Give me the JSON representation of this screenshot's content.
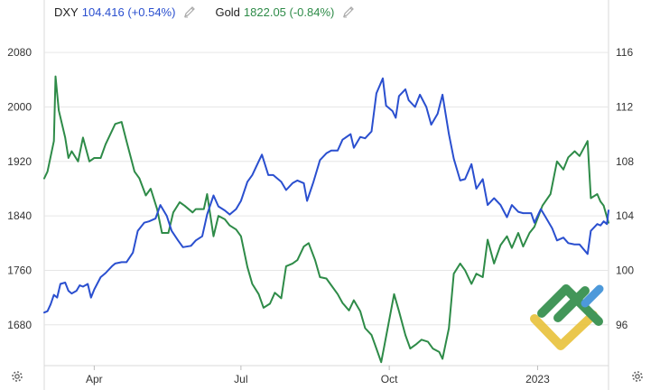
{
  "legend": {
    "dxy": {
      "name": "DXY",
      "value": "104.416 (+0.54%)",
      "color": "#2A4FCF",
      "edit_icon": "pencil-icon"
    },
    "gold": {
      "name": "Gold",
      "value": "1822.05 (-0.84%)",
      "color": "#2E8B48",
      "edit_icon": "pencil-icon"
    }
  },
  "settings_icons": [
    "gear-icon",
    "gear-icon"
  ],
  "watermark_logo": "brand-logo",
  "chart_data": {
    "type": "line",
    "x_range": [
      "2022-03-01",
      "2023-02-14"
    ],
    "x_ticks": [
      {
        "label": "Apr",
        "date": "2022-04-01"
      },
      {
        "label": "Jul",
        "date": "2022-07-01"
      },
      {
        "label": "Oct",
        "date": "2022-10-01"
      },
      {
        "label": "2023",
        "date": "2023-01-01"
      }
    ],
    "y_left": {
      "ticks": [
        1680,
        1760,
        1840,
        1920,
        2000,
        2080
      ],
      "range": [
        1620,
        2120
      ]
    },
    "y_right": {
      "ticks": [
        96,
        100,
        104,
        108,
        112,
        116
      ],
      "range": [
        93,
        118
      ]
    },
    "grid": true,
    "series": [
      {
        "name": "Gold",
        "axis": "left",
        "color": "#2E8B48",
        "points": [
          [
            "2022-03-01",
            1895
          ],
          [
            "2022-03-03",
            1905
          ],
          [
            "2022-03-07",
            1950
          ],
          [
            "2022-03-08",
            2045
          ],
          [
            "2022-03-10",
            1995
          ],
          [
            "2022-03-14",
            1955
          ],
          [
            "2022-03-16",
            1925
          ],
          [
            "2022-03-18",
            1935
          ],
          [
            "2022-03-22",
            1920
          ],
          [
            "2022-03-25",
            1955
          ],
          [
            "2022-03-29",
            1920
          ],
          [
            "2022-04-01",
            1925
          ],
          [
            "2022-04-05",
            1925
          ],
          [
            "2022-04-08",
            1945
          ],
          [
            "2022-04-12",
            1965
          ],
          [
            "2022-04-14",
            1975
          ],
          [
            "2022-04-18",
            1978
          ],
          [
            "2022-04-21",
            1950
          ],
          [
            "2022-04-26",
            1905
          ],
          [
            "2022-04-29",
            1895
          ],
          [
            "2022-05-03",
            1870
          ],
          [
            "2022-05-06",
            1880
          ],
          [
            "2022-05-10",
            1850
          ],
          [
            "2022-05-13",
            1815
          ],
          [
            "2022-05-17",
            1815
          ],
          [
            "2022-05-20",
            1845
          ],
          [
            "2022-05-24",
            1860
          ],
          [
            "2022-05-27",
            1855
          ],
          [
            "2022-06-01",
            1845
          ],
          [
            "2022-06-03",
            1850
          ],
          [
            "2022-06-08",
            1850
          ],
          [
            "2022-06-10",
            1872
          ],
          [
            "2022-06-14",
            1810
          ],
          [
            "2022-06-17",
            1840
          ],
          [
            "2022-06-21",
            1835
          ],
          [
            "2022-06-24",
            1826
          ],
          [
            "2022-06-28",
            1820
          ],
          [
            "2022-07-01",
            1810
          ],
          [
            "2022-07-05",
            1765
          ],
          [
            "2022-07-08",
            1740
          ],
          [
            "2022-07-12",
            1725
          ],
          [
            "2022-07-15",
            1705
          ],
          [
            "2022-07-19",
            1711
          ],
          [
            "2022-07-22",
            1727
          ],
          [
            "2022-07-26",
            1719
          ],
          [
            "2022-07-29",
            1766
          ],
          [
            "2022-08-02",
            1770
          ],
          [
            "2022-08-05",
            1775
          ],
          [
            "2022-08-09",
            1795
          ],
          [
            "2022-08-12",
            1800
          ],
          [
            "2022-08-16",
            1775
          ],
          [
            "2022-08-19",
            1750
          ],
          [
            "2022-08-23",
            1748
          ],
          [
            "2022-08-26",
            1738
          ],
          [
            "2022-08-30",
            1725
          ],
          [
            "2022-09-02",
            1712
          ],
          [
            "2022-09-06",
            1701
          ],
          [
            "2022-09-09",
            1716
          ],
          [
            "2022-09-13",
            1700
          ],
          [
            "2022-09-16",
            1675
          ],
          [
            "2022-09-20",
            1665
          ],
          [
            "2022-09-23",
            1645
          ],
          [
            "2022-09-26",
            1625
          ],
          [
            "2022-09-28",
            1650
          ],
          [
            "2022-10-04",
            1725
          ],
          [
            "2022-10-07",
            1700
          ],
          [
            "2022-10-11",
            1665
          ],
          [
            "2022-10-14",
            1645
          ],
          [
            "2022-10-18",
            1652
          ],
          [
            "2022-10-21",
            1658
          ],
          [
            "2022-10-25",
            1655
          ],
          [
            "2022-10-28",
            1645
          ],
          [
            "2022-11-01",
            1640
          ],
          [
            "2022-11-03",
            1630
          ],
          [
            "2022-11-07",
            1675
          ],
          [
            "2022-11-10",
            1755
          ],
          [
            "2022-11-14",
            1770
          ],
          [
            "2022-11-17",
            1760
          ],
          [
            "2022-11-21",
            1740
          ],
          [
            "2022-11-24",
            1755
          ],
          [
            "2022-11-28",
            1750
          ],
          [
            "2022-12-01",
            1805
          ],
          [
            "2022-12-05",
            1770
          ],
          [
            "2022-12-09",
            1797
          ],
          [
            "2022-12-13",
            1810
          ],
          [
            "2022-12-16",
            1793
          ],
          [
            "2022-12-20",
            1815
          ],
          [
            "2022-12-23",
            1795
          ],
          [
            "2022-12-27",
            1815
          ],
          [
            "2022-12-30",
            1824
          ],
          [
            "2023-01-04",
            1855
          ],
          [
            "2023-01-09",
            1872
          ],
          [
            "2023-01-13",
            1920
          ],
          [
            "2023-01-17",
            1908
          ],
          [
            "2023-01-20",
            1926
          ],
          [
            "2023-01-24",
            1935
          ],
          [
            "2023-01-27",
            1928
          ],
          [
            "2023-02-01",
            1950
          ],
          [
            "2023-02-03",
            1866
          ],
          [
            "2023-02-07",
            1872
          ],
          [
            "2023-02-09",
            1861
          ],
          [
            "2023-02-11",
            1855
          ],
          [
            "2023-02-14",
            1830
          ]
        ]
      },
      {
        "name": "DXY",
        "axis": "right",
        "color": "#2A4FCF",
        "points": [
          [
            "2022-03-01",
            96.9
          ],
          [
            "2022-03-03",
            97.0
          ],
          [
            "2022-03-05",
            97.5
          ],
          [
            "2022-03-07",
            98.2
          ],
          [
            "2022-03-09",
            98.0
          ],
          [
            "2022-03-11",
            99.0
          ],
          [
            "2022-03-14",
            99.1
          ],
          [
            "2022-03-16",
            98.5
          ],
          [
            "2022-03-18",
            98.3
          ],
          [
            "2022-03-21",
            98.5
          ],
          [
            "2022-03-23",
            98.9
          ],
          [
            "2022-03-25",
            98.8
          ],
          [
            "2022-03-28",
            99.0
          ],
          [
            "2022-03-30",
            98.0
          ],
          [
            "2022-04-01",
            98.6
          ],
          [
            "2022-04-05",
            99.5
          ],
          [
            "2022-04-08",
            99.8
          ],
          [
            "2022-04-12",
            100.3
          ],
          [
            "2022-04-14",
            100.5
          ],
          [
            "2022-04-18",
            100.6
          ],
          [
            "2022-04-21",
            100.6
          ],
          [
            "2022-04-25",
            101.3
          ],
          [
            "2022-04-28",
            102.9
          ],
          [
            "2022-05-02",
            103.5
          ],
          [
            "2022-05-05",
            103.6
          ],
          [
            "2022-05-09",
            103.8
          ],
          [
            "2022-05-12",
            104.8
          ],
          [
            "2022-05-16",
            104.0
          ],
          [
            "2022-05-19",
            102.9
          ],
          [
            "2022-05-23",
            102.2
          ],
          [
            "2022-05-26",
            101.7
          ],
          [
            "2022-05-31",
            101.8
          ],
          [
            "2022-06-03",
            102.2
          ],
          [
            "2022-06-07",
            102.5
          ],
          [
            "2022-06-10",
            104.1
          ],
          [
            "2022-06-14",
            105.5
          ],
          [
            "2022-06-17",
            104.7
          ],
          [
            "2022-06-21",
            104.4
          ],
          [
            "2022-06-24",
            104.1
          ],
          [
            "2022-06-28",
            104.5
          ],
          [
            "2022-07-01",
            105.1
          ],
          [
            "2022-07-05",
            106.5
          ],
          [
            "2022-07-08",
            107.0
          ],
          [
            "2022-07-12",
            108.0
          ],
          [
            "2022-07-14",
            108.5
          ],
          [
            "2022-07-18",
            107.0
          ],
          [
            "2022-07-21",
            107.0
          ],
          [
            "2022-07-26",
            106.5
          ],
          [
            "2022-07-29",
            105.9
          ],
          [
            "2022-08-02",
            106.4
          ],
          [
            "2022-08-05",
            106.6
          ],
          [
            "2022-08-09",
            106.4
          ],
          [
            "2022-08-11",
            105.1
          ],
          [
            "2022-08-15",
            106.5
          ],
          [
            "2022-08-19",
            108.1
          ],
          [
            "2022-08-23",
            108.6
          ],
          [
            "2022-08-26",
            108.8
          ],
          [
            "2022-08-30",
            108.8
          ],
          [
            "2022-09-02",
            109.6
          ],
          [
            "2022-09-07",
            110.0
          ],
          [
            "2022-09-09",
            109.0
          ],
          [
            "2022-09-13",
            109.8
          ],
          [
            "2022-09-16",
            109.7
          ],
          [
            "2022-09-20",
            110.2
          ],
          [
            "2022-09-23",
            113.0
          ],
          [
            "2022-09-27",
            114.1
          ],
          [
            "2022-09-29",
            112.1
          ],
          [
            "2022-10-03",
            111.7
          ],
          [
            "2022-10-05",
            111.2
          ],
          [
            "2022-10-07",
            112.8
          ],
          [
            "2022-10-11",
            113.3
          ],
          [
            "2022-10-13",
            112.5
          ],
          [
            "2022-10-17",
            112.0
          ],
          [
            "2022-10-20",
            112.9
          ],
          [
            "2022-10-24",
            112.0
          ],
          [
            "2022-10-27",
            110.7
          ],
          [
            "2022-10-31",
            111.5
          ],
          [
            "2022-11-03",
            112.9
          ],
          [
            "2022-11-07",
            110.0
          ],
          [
            "2022-11-10",
            108.2
          ],
          [
            "2022-11-14",
            106.6
          ],
          [
            "2022-11-17",
            106.7
          ],
          [
            "2022-11-21",
            107.8
          ],
          [
            "2022-11-24",
            106.0
          ],
          [
            "2022-11-28",
            106.7
          ],
          [
            "2022-12-01",
            104.8
          ],
          [
            "2022-12-05",
            105.3
          ],
          [
            "2022-12-09",
            104.8
          ],
          [
            "2022-12-13",
            103.9
          ],
          [
            "2022-12-16",
            104.8
          ],
          [
            "2022-12-20",
            104.3
          ],
          [
            "2022-12-23",
            104.2
          ],
          [
            "2022-12-28",
            104.2
          ],
          [
            "2022-12-30",
            103.5
          ],
          [
            "2023-01-03",
            104.5
          ],
          [
            "2023-01-06",
            103.9
          ],
          [
            "2023-01-10",
            103.1
          ],
          [
            "2023-01-13",
            102.2
          ],
          [
            "2023-01-17",
            102.4
          ],
          [
            "2023-01-20",
            102.0
          ],
          [
            "2023-01-24",
            101.9
          ],
          [
            "2023-01-27",
            101.9
          ],
          [
            "2023-02-01",
            101.2
          ],
          [
            "2023-02-03",
            102.9
          ],
          [
            "2023-02-07",
            103.4
          ],
          [
            "2023-02-09",
            103.3
          ],
          [
            "2023-02-11",
            103.6
          ],
          [
            "2023-02-13",
            103.4
          ],
          [
            "2023-02-14",
            104.4
          ]
        ]
      }
    ]
  }
}
